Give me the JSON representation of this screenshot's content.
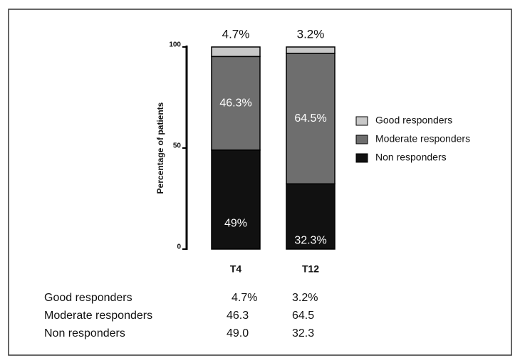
{
  "chart_data": {
    "type": "stacked_bar",
    "ylabel": "Percentage of patients",
    "categories": [
      "T4",
      "T12"
    ],
    "series": [
      {
        "name": "Non responders",
        "color": "#111111",
        "values": [
          49,
          32.3
        ],
        "value_labels": [
          "49%",
          "32.3%"
        ]
      },
      {
        "name": "Moderate responders",
        "color": "#6e6e6e",
        "values": [
          46.3,
          64.5
        ],
        "value_labels": [
          "46.3%",
          "64.5%"
        ]
      },
      {
        "name": "Good responders",
        "color": "#c8c8c8",
        "values": [
          4.7,
          3.2
        ],
        "value_labels": [
          "4.7%",
          "3.2%"
        ]
      }
    ],
    "ylim": [
      0,
      100
    ],
    "yticks": [
      0,
      50,
      100
    ]
  },
  "table": {
    "rows": [
      [
        "Good responders",
        "4.7%",
        "3.2%"
      ],
      [
        "Moderate responders",
        "46.3",
        "64.5"
      ],
      [
        "Non responders",
        "49.0",
        "32.3"
      ]
    ]
  }
}
